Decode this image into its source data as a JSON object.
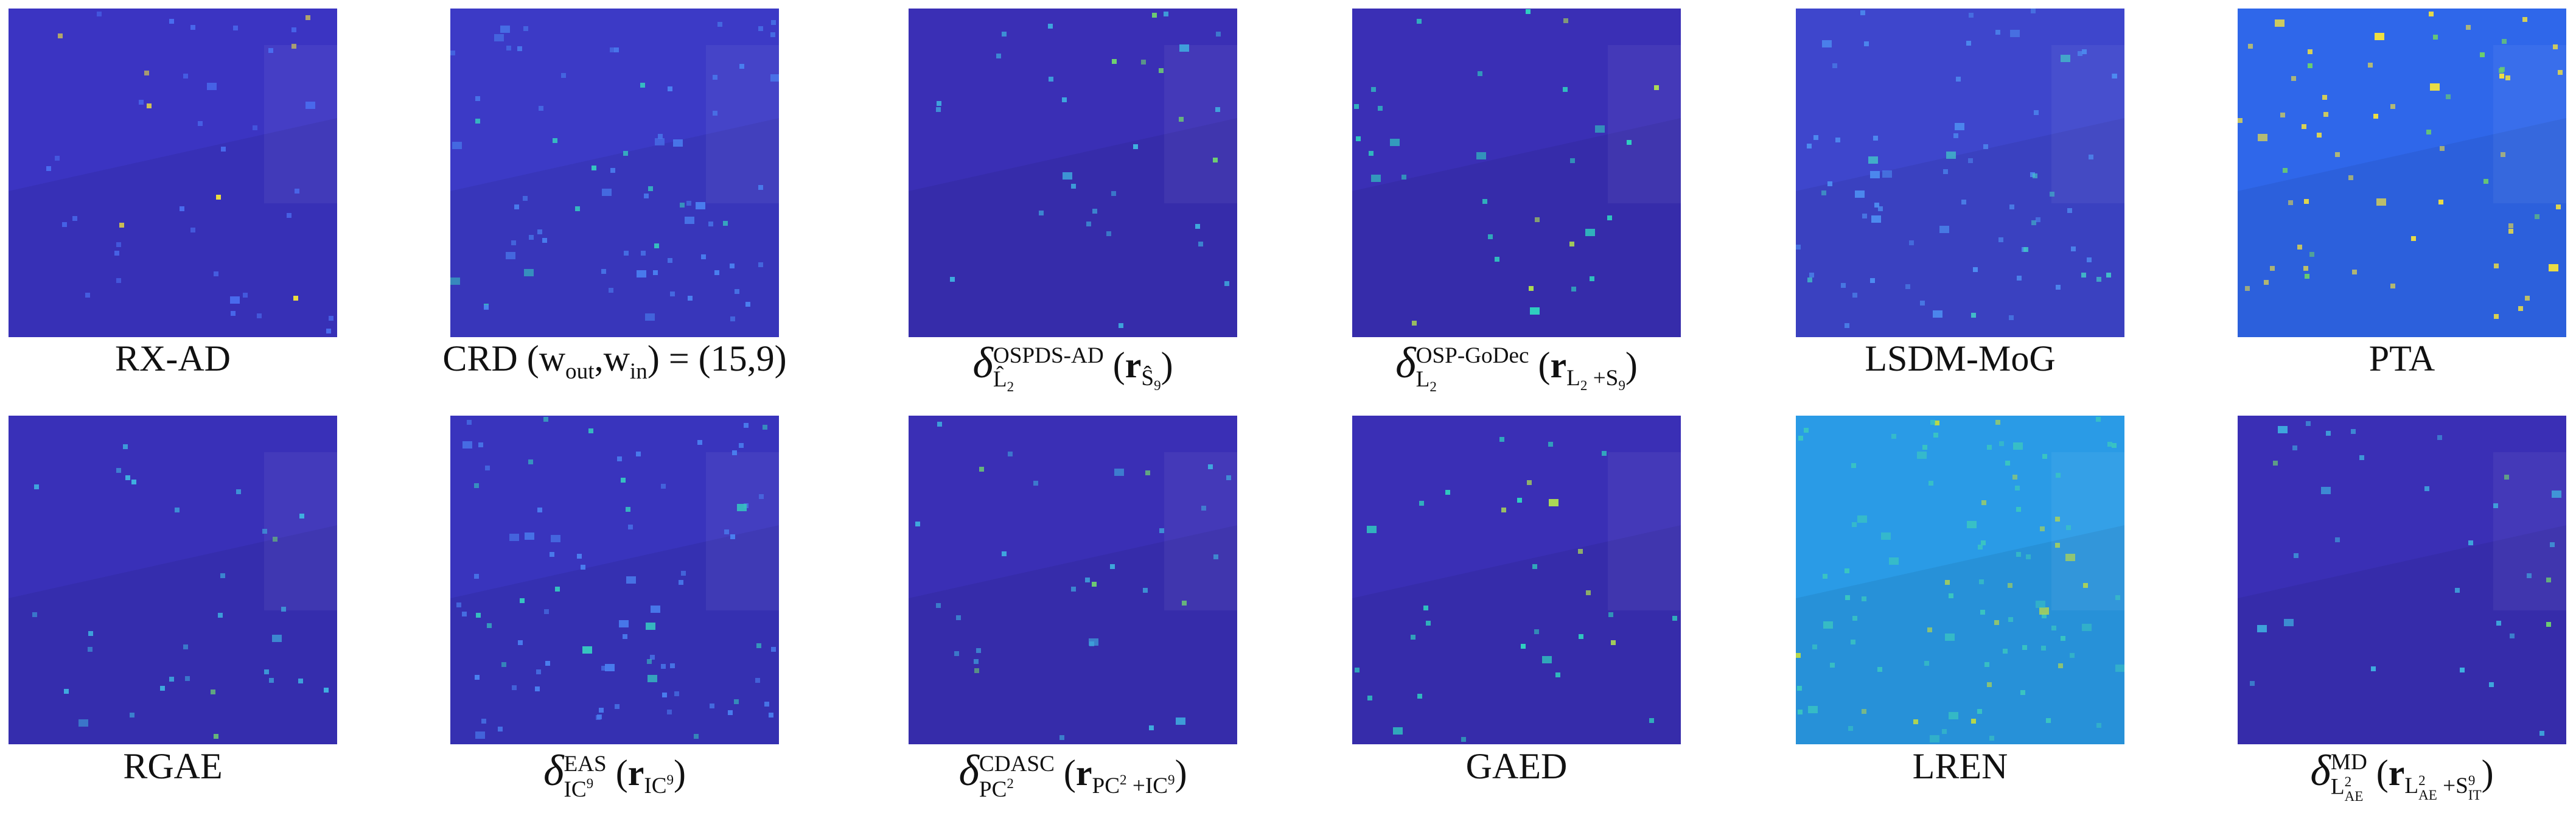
{
  "panels": [
    {
      "caption": [
        "RX-AD"
      ]
    },
    {
      "caption": [
        "CRD (",
        "w",
        {
          "sub": [
            "out"
          ]
        },
        ",",
        "w",
        {
          "sub": [
            "in"
          ]
        },
        ") = (15,9)"
      ]
    },
    {
      "caption": [
        {
          "i": "δ"
        },
        {
          "script": {
            "sup": [
              "OSPDS-AD"
            ],
            "sub": [
              "L̂",
              {
                "sub": [
                  "2"
                ]
              }
            ]
          }
        },
        " (",
        {
          "b": "r"
        },
        {
          "sub": [
            "Ŝ",
            {
              "sub": [
                "9"
              ]
            }
          ]
        },
        ")"
      ]
    },
    {
      "caption": [
        {
          "i": "δ"
        },
        {
          "script": {
            "sup": [
              "OSP-GoDec"
            ],
            "sub": [
              "L",
              {
                "sub": [
                  "2"
                ]
              }
            ]
          }
        },
        " (",
        {
          "b": "r"
        },
        {
          "sub": [
            "L",
            {
              "sub": [
                "2"
              ]
            },
            " +S",
            {
              "sub": [
                "9"
              ]
            }
          ]
        },
        ")"
      ]
    },
    {
      "caption": [
        "LSDM-MoG"
      ]
    },
    {
      "caption": [
        "PTA"
      ]
    },
    {
      "caption": [
        "RGAE"
      ]
    },
    {
      "caption": [
        {
          "i": "δ"
        },
        {
          "script": {
            "sup": [
              "EAS"
            ],
            "sub": [
              "IC",
              {
                "sup": [
                  "9"
                ]
              }
            ]
          }
        },
        " (",
        {
          "b": "r"
        },
        {
          "sub": [
            "IC",
            {
              "sup": [
                "9"
              ]
            }
          ]
        },
        ")"
      ]
    },
    {
      "caption": [
        {
          "i": "δ"
        },
        {
          "script": {
            "sup": [
              "CDASC"
            ],
            "sub": [
              "PC",
              {
                "sup": [
                  "2"
                ]
              }
            ]
          }
        },
        " (",
        {
          "b": "r"
        },
        {
          "sub": [
            "PC",
            {
              "sup": [
                "2"
              ]
            },
            " +IC",
            {
              "sup": [
                "9"
              ]
            }
          ]
        },
        ")"
      ]
    },
    {
      "caption": [
        "GAED"
      ]
    },
    {
      "caption": [
        "LREN"
      ]
    },
    {
      "caption": [
        {
          "i": "δ"
        },
        {
          "script": {
            "sup": [
              "MD"
            ],
            "sub": [
              "L",
              {
                "script": {
                  "sup": [
                    "2"
                  ],
                  "sub": [
                    "AE"
                  ]
                }
              }
            ]
          }
        },
        " (",
        {
          "b": "r"
        },
        {
          "sub": [
            "L",
            {
              "script": {
                "sup": [
                  "2"
                ],
                "sub": [
                  "AE"
                ]
              }
            },
            " +S",
            {
              "script": {
                "sup": [
                  "9"
                ],
                "sub": [
                  "IT"
                ]
              }
            }
          ]
        },
        ")"
      ]
    }
  ]
}
